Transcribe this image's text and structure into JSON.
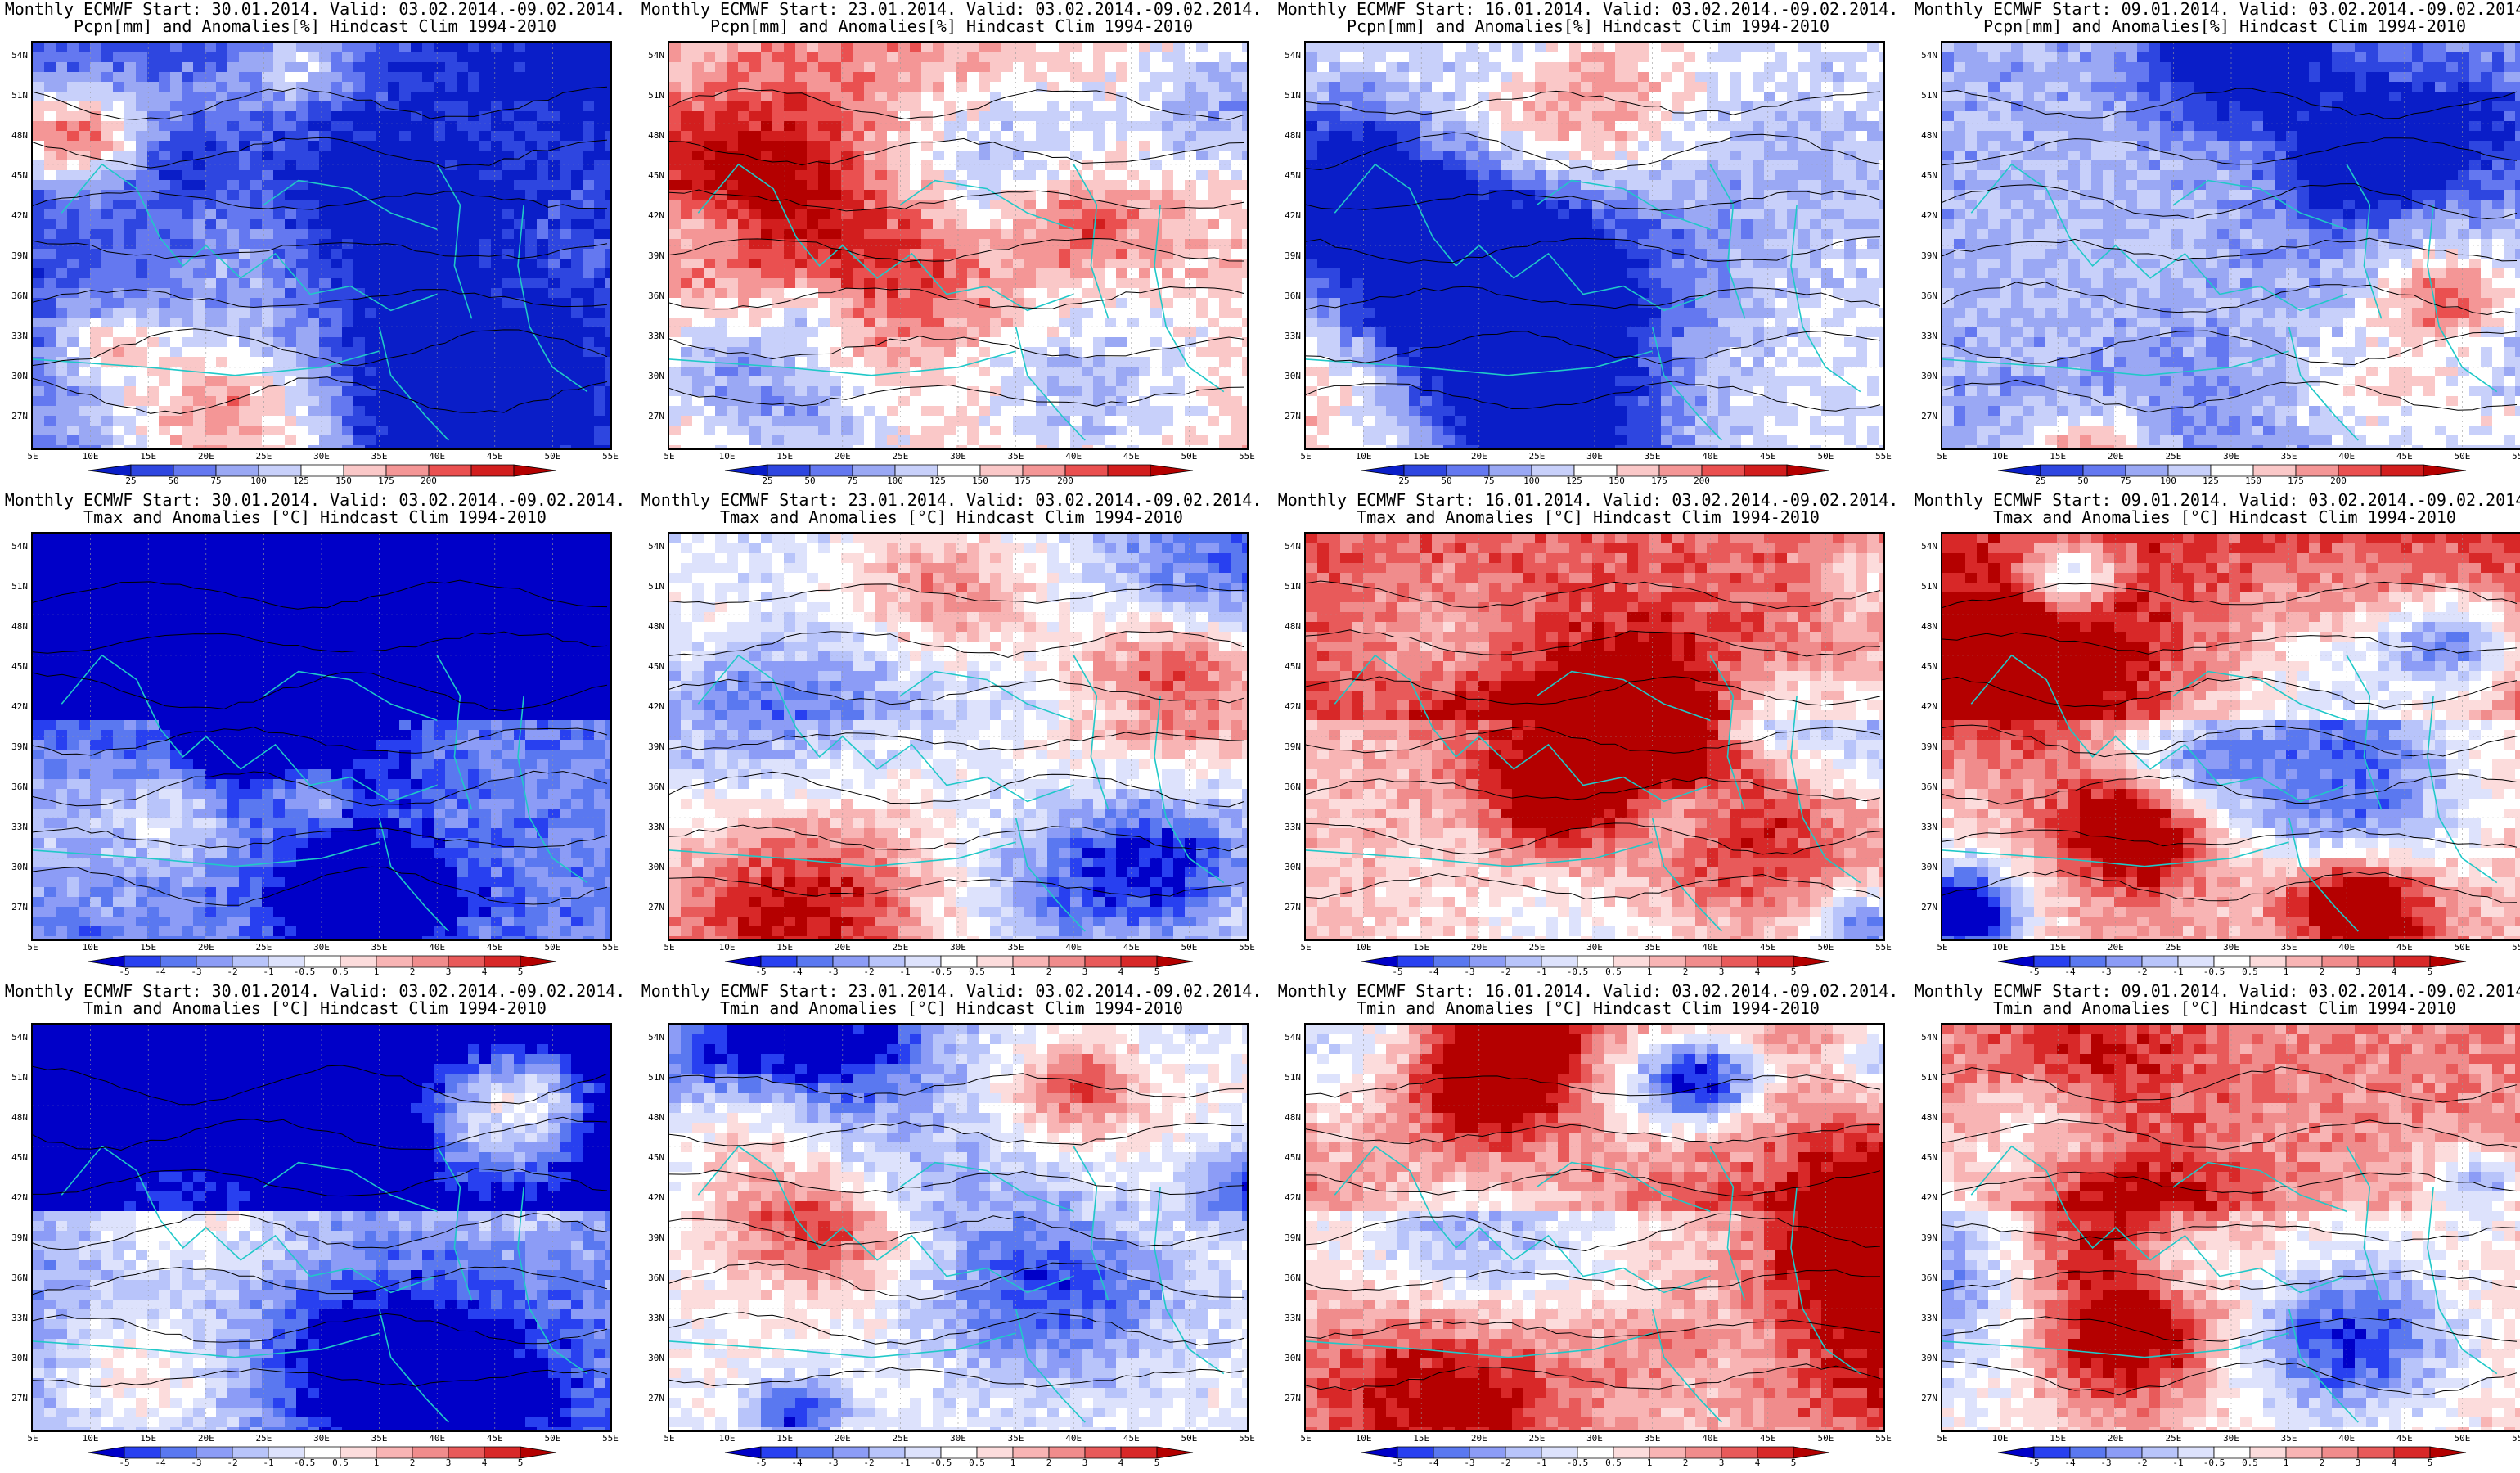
{
  "colors": {
    "pcpn": [
      "#0a1ec8",
      "#2e46e0",
      "#6478f0",
      "#9aa8f4",
      "#c8d0fa",
      "#ffffff",
      "#fac8c8",
      "#f49696",
      "#ea5050",
      "#d21e1e",
      "#b40000"
    ],
    "temp": [
      "#0000c8",
      "#2840f0",
      "#5a78f0",
      "#8c9cf6",
      "#b8c4fa",
      "#dde2fc",
      "#ffffff",
      "#fcdcdc",
      "#f8b4b4",
      "#f08c8c",
      "#e85a5a",
      "#d82828",
      "#b40000"
    ],
    "coast": "#20c8c8",
    "contour": "#000000"
  },
  "axes": {
    "y_ticks": [
      "54N",
      "51N",
      "48N",
      "45N",
      "42N",
      "39N",
      "36N",
      "33N",
      "30N",
      "27N"
    ],
    "x_ticks": [
      "5E",
      "10E",
      "15E",
      "20E",
      "25E",
      "30E",
      "35E",
      "40E",
      "45E",
      "50E",
      "55E"
    ]
  },
  "colorbars": {
    "pcpn": [
      "25",
      "50",
      "75",
      "100",
      "125",
      "150",
      "175",
      "200"
    ],
    "temp": [
      "-5",
      "-4",
      "-3",
      "-2",
      "-1",
      "-0.5",
      "0.5",
      "1",
      "2",
      "3",
      "4",
      "5"
    ]
  },
  "panels": [
    {
      "title1": "Monthly ECMWF Start: 30.01.2014. Valid: 03.02.2014.-09.02.2014.",
      "title2": "Pcpn[mm] and Anomalies[%] Hindcast Clim 1994-2010",
      "kind": "pcpn",
      "bias": -0.55,
      "seed": 11
    },
    {
      "title1": "Monthly ECMWF Start: 23.01.2014. Valid: 03.02.2014.-09.02.2014.",
      "title2": "Pcpn[mm] and Anomalies[%] Hindcast Clim 1994-2010",
      "kind": "pcpn",
      "bias": 0.15,
      "seed": 23
    },
    {
      "title1": "Monthly ECMWF Start: 16.01.2014. Valid: 03.02.2014.-09.02.2014.",
      "title2": "Pcpn[mm] and Anomalies[%] Hindcast Clim 1994-2010",
      "kind": "pcpn",
      "bias": -0.05,
      "seed": 37
    },
    {
      "title1": "Monthly ECMWF Start: 09.01.2014. Valid: 03.02.2014.-09.02.2014.",
      "title2": "Pcpn[mm] and Anomalies[%] Hindcast Clim 1994-2010",
      "kind": "pcpn",
      "bias": -0.25,
      "seed": 41
    },
    {
      "title1": "Monthly ECMWF Start: 30.01.2014. Valid: 03.02.2014.-09.02.2014.",
      "title2": "Tmax and Anomalies [°C] Hindcast Clim 1994-2010",
      "kind": "temp",
      "bias": -0.6,
      "seed": 53
    },
    {
      "title1": "Monthly ECMWF Start: 23.01.2014. Valid: 03.02.2014.-09.02.2014.",
      "title2": "Tmax and Anomalies [°C] Hindcast Clim 1994-2010",
      "kind": "temp",
      "bias": -0.1,
      "seed": 61
    },
    {
      "title1": "Monthly ECMWF Start: 16.01.2014. Valid: 03.02.2014.-09.02.2014.",
      "title2": "Tmax and Anomalies [°C] Hindcast Clim 1994-2010",
      "kind": "temp",
      "bias": 0.25,
      "seed": 71
    },
    {
      "title1": "Monthly ECMWF Start: 09.01.2014. Valid: 03.02.2014.-09.02.2014.",
      "title2": "Tmax and Anomalies [°C] Hindcast Clim 1994-2010",
      "kind": "temp",
      "bias": 0.3,
      "seed": 83
    },
    {
      "title1": "Monthly ECMWF Start: 30.01.2014. Valid: 03.02.2014.-09.02.2014.",
      "title2": "Tmin and Anomalies [°C] Hindcast Clim 1994-2010",
      "kind": "temp",
      "bias": -0.55,
      "seed": 97
    },
    {
      "title1": "Monthly ECMWF Start: 23.01.2014. Valid: 03.02.2014.-09.02.2014.",
      "title2": "Tmin and Anomalies [°C] Hindcast Clim 1994-2010",
      "kind": "temp",
      "bias": -0.05,
      "seed": 101
    },
    {
      "title1": "Monthly ECMWF Start: 16.01.2014. Valid: 03.02.2014.-09.02.2014.",
      "title2": "Tmin and Anomalies [°C] Hindcast Clim 1994-2010",
      "kind": "temp",
      "bias": 0.25,
      "seed": 113
    },
    {
      "title1": "Monthly ECMWF Start: 09.01.2014. Valid: 03.02.2014.-09.02.2014.",
      "title2": "Tmin and Anomalies [°C] Hindcast Clim 1994-2010",
      "kind": "temp",
      "bias": 0.2,
      "seed": 127
    }
  ]
}
